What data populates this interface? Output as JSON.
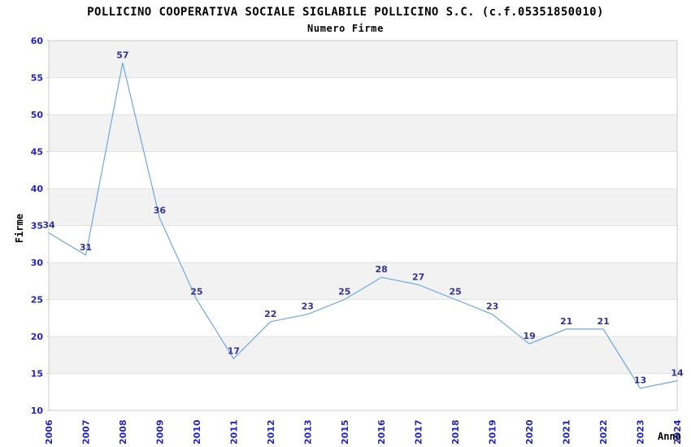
{
  "chart_data": {
    "type": "line",
    "title": "POLLICINO COOPERATIVA SOCIALE SIGLABILE POLLICINO S.C. (c.f.05351850010)",
    "subtitle": "Numero Firme",
    "xlabel": "Anno",
    "ylabel": "Firme",
    "categories": [
      "2006",
      "2007",
      "2008",
      "2009",
      "2010",
      "2011",
      "2012",
      "2013",
      "2015",
      "2016",
      "2017",
      "2018",
      "2019",
      "2020",
      "2021",
      "2022",
      "2023",
      "2024"
    ],
    "series": [
      {
        "name": "Numero Firme",
        "values": [
          34,
          31,
          57,
          36,
          25,
          17,
          22,
          23,
          25,
          28,
          27,
          25,
          23,
          19,
          21,
          21,
          13,
          14
        ]
      }
    ],
    "ylim": [
      10,
      60
    ],
    "ytick_step": 5,
    "yticks": [
      10,
      15,
      20,
      25,
      30,
      35,
      40,
      45,
      50,
      55,
      60
    ],
    "grid": "horizontal-alternating-bands",
    "legend_position": "none",
    "x_tick_rotation": -90,
    "data_labels_shown": true,
    "colors": {
      "line": "#6fa8dc",
      "data_label": "#333399",
      "tick_label": "#2222cc",
      "axis_title": "#000000",
      "title": "#000000",
      "band": "#f2f2f2",
      "gridline": "#e3e3e3",
      "border": "#cccccc",
      "background": "#ffffff"
    }
  }
}
